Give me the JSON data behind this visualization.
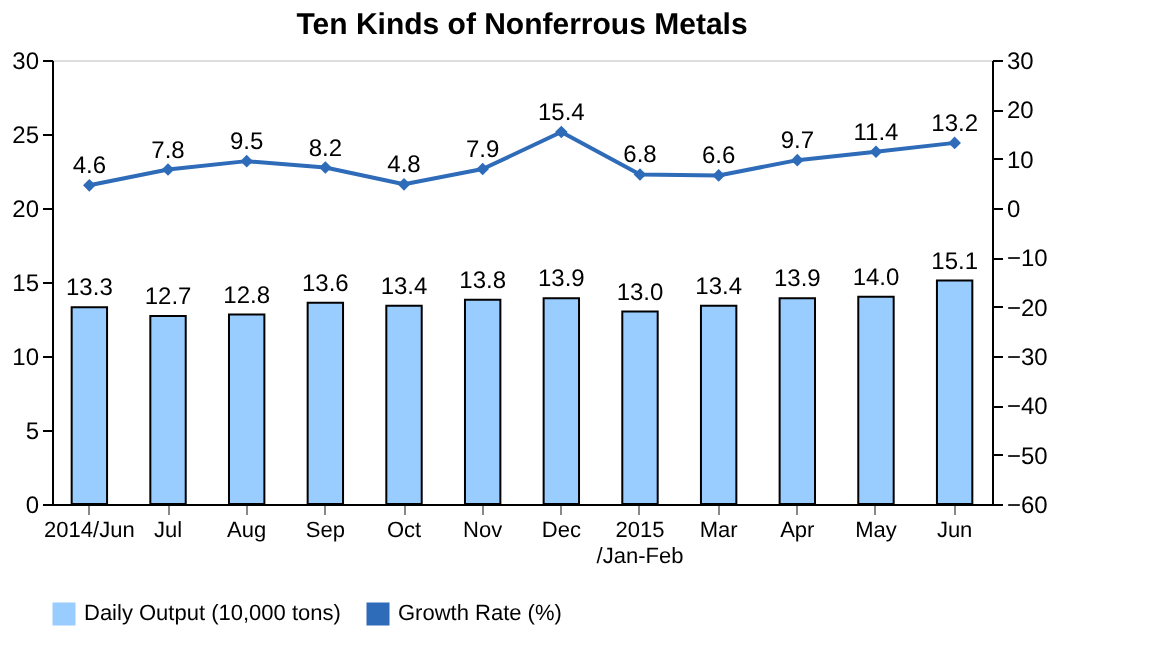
{
  "chart_data": {
    "type": "bar",
    "title": "Ten Kinds of Nonferrous Metals",
    "categories": [
      "2014/Jun",
      "Jul",
      "Aug",
      "Sep",
      "Oct",
      "Nov",
      "Dec",
      "2015\n/Jan-Feb",
      "Mar",
      "Apr",
      "May",
      "Jun"
    ],
    "series": [
      {
        "name": "Daily Output (10,000 tons)",
        "color": "#99ccff",
        "values": [
          13.3,
          12.7,
          12.8,
          13.6,
          13.4,
          13.8,
          13.9,
          13.0,
          13.4,
          13.9,
          14.0,
          15.1
        ],
        "value_labels": [
          "13.3",
          "12.7",
          "12.8",
          "13.6",
          "13.4",
          "13.8",
          "13.9",
          "13.0",
          "13.4",
          "13.9",
          "14.0",
          "15.1"
        ]
      },
      {
        "name": "Growth Rate (%)",
        "type": "line",
        "axis": "y2",
        "color": "#2e6bb8",
        "marker": "diamond",
        "values": [
          4.6,
          7.8,
          9.5,
          8.2,
          4.8,
          7.9,
          15.4,
          6.8,
          6.6,
          9.7,
          11.4,
          13.2
        ],
        "value_labels": [
          "4.6",
          "7.8",
          "9.5",
          "8.2",
          "4.8",
          "7.9",
          "15.4",
          "6.8",
          "6.6",
          "9.7",
          "11.4",
          "13.2"
        ]
      }
    ],
    "ylim": [
      0,
      30
    ],
    "yticks": [
      0,
      5,
      10,
      15,
      20,
      25,
      30
    ],
    "y2lim": [
      -60,
      30
    ],
    "y2ticks": [
      -60,
      -50,
      -40,
      -30,
      -20,
      -10,
      0,
      10,
      20,
      30
    ],
    "grid": false,
    "legend": "bottom"
  }
}
